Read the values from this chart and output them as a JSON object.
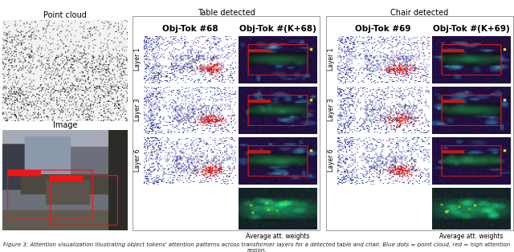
{
  "title_left": "Table detected",
  "title_right": "Chair detected",
  "col1_header": "Obj-Tok #68",
  "col2_header": "Obj-Tok #(K+68)",
  "col3_header": "Obj-Tok #69",
  "col4_header": "Obj-Tok #(K+69)",
  "row_labels": [
    "Layer 1",
    "Layer 3",
    "Layer 6"
  ],
  "avg_label": "Average att. weights",
  "pc_title": "Point cloud",
  "img_title": "Image",
  "caption_left": "Figure 3: Attention visualization illustrating how object tokens attend across transformer layers for",
  "caption_right": "a detected table (left) and chair (right). Blue = point cloud tokens, red = high attention.",
  "bg_color": "#ffffff",
  "header_fontsize": 7,
  "label_fontsize": 5.5,
  "caption_fontsize": 5.0,
  "col_header_fontsize": 7.5
}
